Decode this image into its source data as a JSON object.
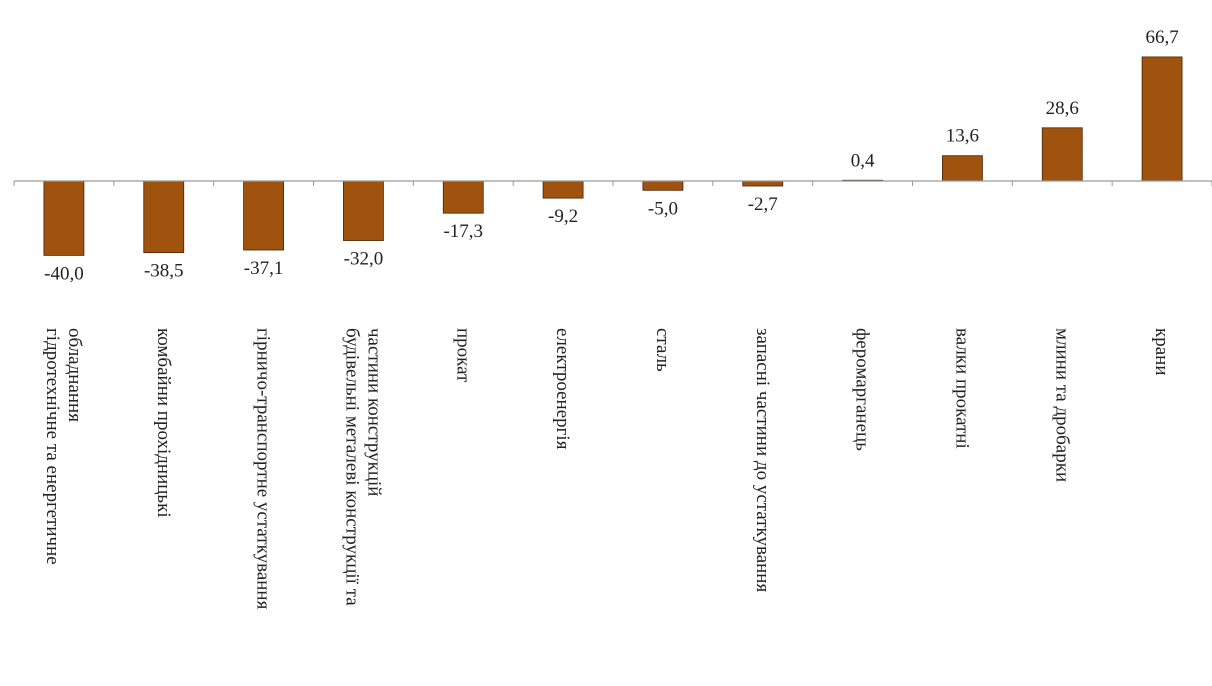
{
  "chart_data": {
    "type": "bar",
    "title": "",
    "xlabel": "",
    "ylabel": "",
    "grid": false,
    "legend": "none",
    "ylim": [
      -45,
      75
    ],
    "bar_color": "#A0520F",
    "bar_edge_color": "#4a2305",
    "categories": [
      [
        "гідротехнічне та енергетичне",
        "обладнання"
      ],
      [
        "комбайни прохідницькі"
      ],
      [
        "гірничо-транспортне устаткування"
      ],
      [
        "будівельні металеві конструкції та",
        "частини конструкцій"
      ],
      [
        "прокат"
      ],
      [
        "електроенергія"
      ],
      [
        "сталь"
      ],
      [
        "запасні частини до устаткування"
      ],
      [
        "феромарганець"
      ],
      [
        "валки прокатні"
      ],
      [
        "млини та дробарки"
      ],
      [
        "крани"
      ]
    ],
    "values": [
      -40.0,
      -38.5,
      -37.1,
      -32.0,
      -17.3,
      -9.2,
      -5.0,
      -2.7,
      0.4,
      13.6,
      28.6,
      66.7
    ],
    "value_labels": [
      "-40,0",
      "-38,5",
      "-37,1",
      "-32,0",
      "-17,3",
      "-9,2",
      "-5,0",
      "-2,7",
      "0,4",
      "13,6",
      "28,6",
      "66,7"
    ]
  }
}
